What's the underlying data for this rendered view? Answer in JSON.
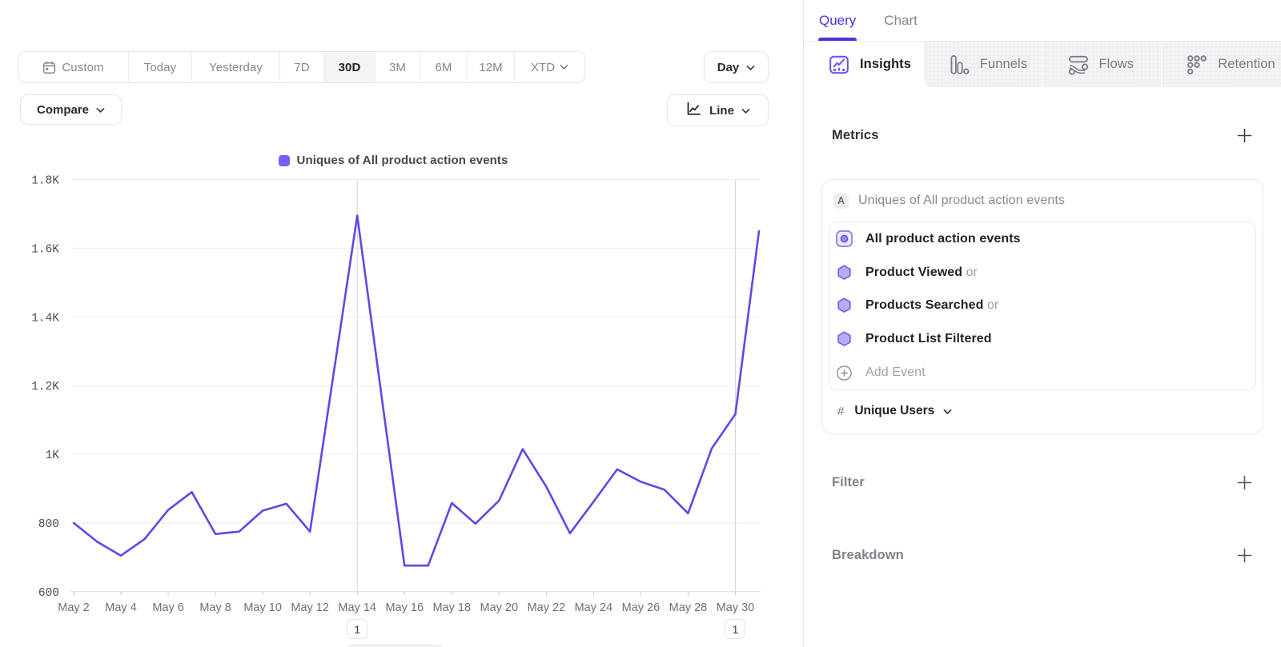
{
  "time_range_bar": {
    "items": [
      {
        "id": "custom",
        "label": "Custom",
        "icon": "calendar"
      },
      {
        "id": "today",
        "label": "Today"
      },
      {
        "id": "yesterday",
        "label": "Yesterday"
      },
      {
        "id": "7d",
        "label": "7D"
      },
      {
        "id": "30d",
        "label": "30D",
        "active": true
      },
      {
        "id": "3m",
        "label": "3M"
      },
      {
        "id": "6m",
        "label": "6M"
      },
      {
        "id": "12m",
        "label": "12M"
      },
      {
        "id": "xtd",
        "label": "XTD",
        "icon": "chevron-down"
      }
    ]
  },
  "compare_button": {
    "label": "Compare"
  },
  "granularity_button": {
    "label": "Day"
  },
  "chart_type_button": {
    "label": "Line"
  },
  "legend": {
    "label": "Uniques of All product action events",
    "swatch_color": "#7a5cf8"
  },
  "chart_data": {
    "type": "line",
    "series_name": "Uniques of All product action events",
    "line_color": "#5c49e6",
    "x": [
      "May 2",
      "May 3",
      "May 4",
      "May 5",
      "May 6",
      "May 7",
      "May 8",
      "May 9",
      "May 10",
      "May 11",
      "May 12",
      "May 13",
      "May 14",
      "May 15",
      "May 16",
      "May 17",
      "May 18",
      "May 19",
      "May 20",
      "May 21",
      "May 22",
      "May 23",
      "May 24",
      "May 25",
      "May 26",
      "May 27",
      "May 28",
      "May 29",
      "May 30",
      "May 31"
    ],
    "values": [
      800,
      745,
      705,
      753,
      838,
      890,
      768,
      775,
      836,
      856,
      775,
      1235,
      1695,
      1185,
      676,
      676,
      858,
      798,
      865,
      1015,
      906,
      770,
      862,
      956,
      920,
      897,
      828,
      1017,
      1117,
      1650
    ],
    "ylim": [
      600,
      1800
    ],
    "y_ticks": [
      {
        "value": 1800,
        "label": "1.8K"
      },
      {
        "value": 1600,
        "label": "1.6K"
      },
      {
        "value": 1400,
        "label": "1.4K"
      },
      {
        "value": 1200,
        "label": "1.2K"
      },
      {
        "value": 1000,
        "label": "1K"
      },
      {
        "value": 800,
        "label": "800"
      },
      {
        "value": 600,
        "label": "600"
      }
    ],
    "x_tick_labels": [
      "May 2",
      "May 4",
      "May 6",
      "May 8",
      "May 10",
      "May 12",
      "May 14",
      "May 16",
      "May 18",
      "May 20",
      "May 22",
      "May 24",
      "May 26",
      "May 28",
      "May 30"
    ],
    "grid": true,
    "annotations": [
      {
        "x": "May 14",
        "label": "1"
      },
      {
        "x": "May 30",
        "label": "1"
      }
    ]
  },
  "query_panel": {
    "tabs": [
      {
        "label": "Query",
        "active": true
      },
      {
        "label": "Chart"
      }
    ],
    "report_tabs": [
      {
        "label": "Insights",
        "icon": "insights",
        "active": true
      },
      {
        "label": "Funnels",
        "icon": "funnels"
      },
      {
        "label": "Flows",
        "icon": "flows"
      },
      {
        "label": "Retention",
        "icon": "retention"
      }
    ],
    "metrics": {
      "heading": "Metrics",
      "series_badge": "A",
      "series_title": "Uniques of All product action events",
      "events": [
        {
          "name": "All product action events",
          "icon": "all-events"
        },
        {
          "name": "Product Viewed",
          "suffix": "or",
          "icon": "hexagon"
        },
        {
          "name": "Products Searched",
          "suffix": "or",
          "icon": "hexagon"
        },
        {
          "name": "Product List Filtered",
          "icon": "hexagon"
        }
      ],
      "add_event_label": "Add Event",
      "counting": {
        "prefix": "#",
        "label": "Unique Users"
      }
    },
    "filter": {
      "heading": "Filter"
    },
    "breakdown": {
      "heading": "Breakdown"
    }
  }
}
